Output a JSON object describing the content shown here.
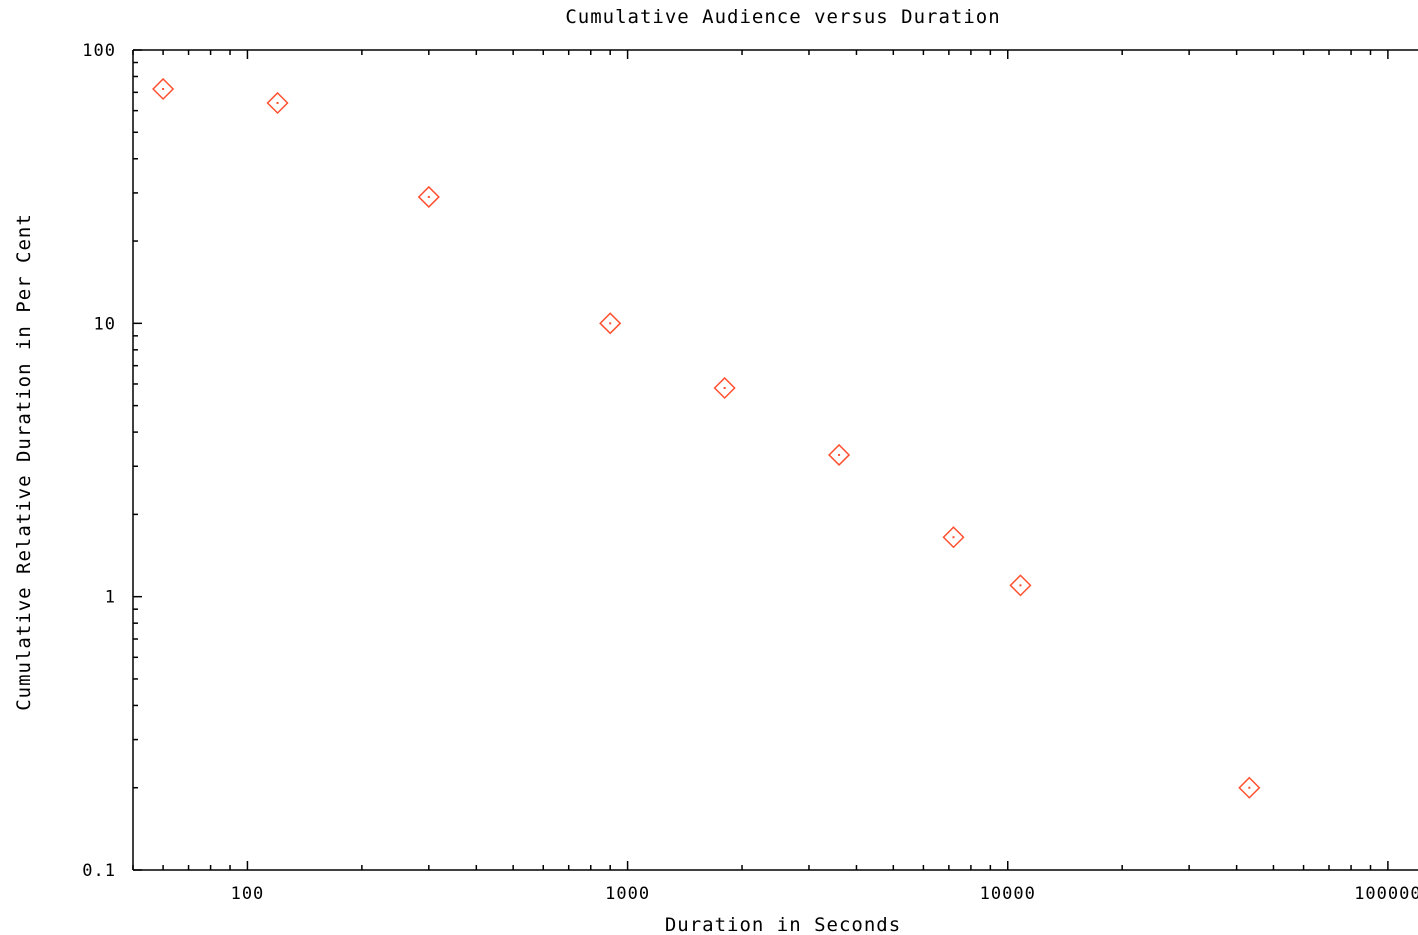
{
  "chart_data": {
    "type": "scatter",
    "title": "Cumulative Audience versus Duration",
    "xlabel": "Duration in Seconds",
    "ylabel": "Cumulative Relative Duration in Per Cent",
    "x_scale": "log",
    "y_scale": "log",
    "xlim": [
      50,
      120000
    ],
    "ylim": [
      0.1,
      100
    ],
    "x_ticks": [
      {
        "value": 100,
        "label": "100"
      },
      {
        "value": 1000,
        "label": "1000"
      },
      {
        "value": 10000,
        "label": "10000"
      },
      {
        "value": 100000,
        "label": "100000"
      }
    ],
    "y_ticks": [
      {
        "value": 0.1,
        "label": "0.1"
      },
      {
        "value": 1,
        "label": "1"
      },
      {
        "value": 10,
        "label": "10"
      },
      {
        "value": 100,
        "label": "100"
      }
    ],
    "grid": false,
    "marker": "diamond",
    "marker_color": "#ff5030",
    "points": [
      {
        "x": 60,
        "y": 72
      },
      {
        "x": 120,
        "y": 64
      },
      {
        "x": 300,
        "y": 29
      },
      {
        "x": 900,
        "y": 10
      },
      {
        "x": 1800,
        "y": 5.8
      },
      {
        "x": 3600,
        "y": 3.3
      },
      {
        "x": 7200,
        "y": 1.65
      },
      {
        "x": 10800,
        "y": 1.1
      },
      {
        "x": 43200,
        "y": 0.2
      }
    ]
  }
}
